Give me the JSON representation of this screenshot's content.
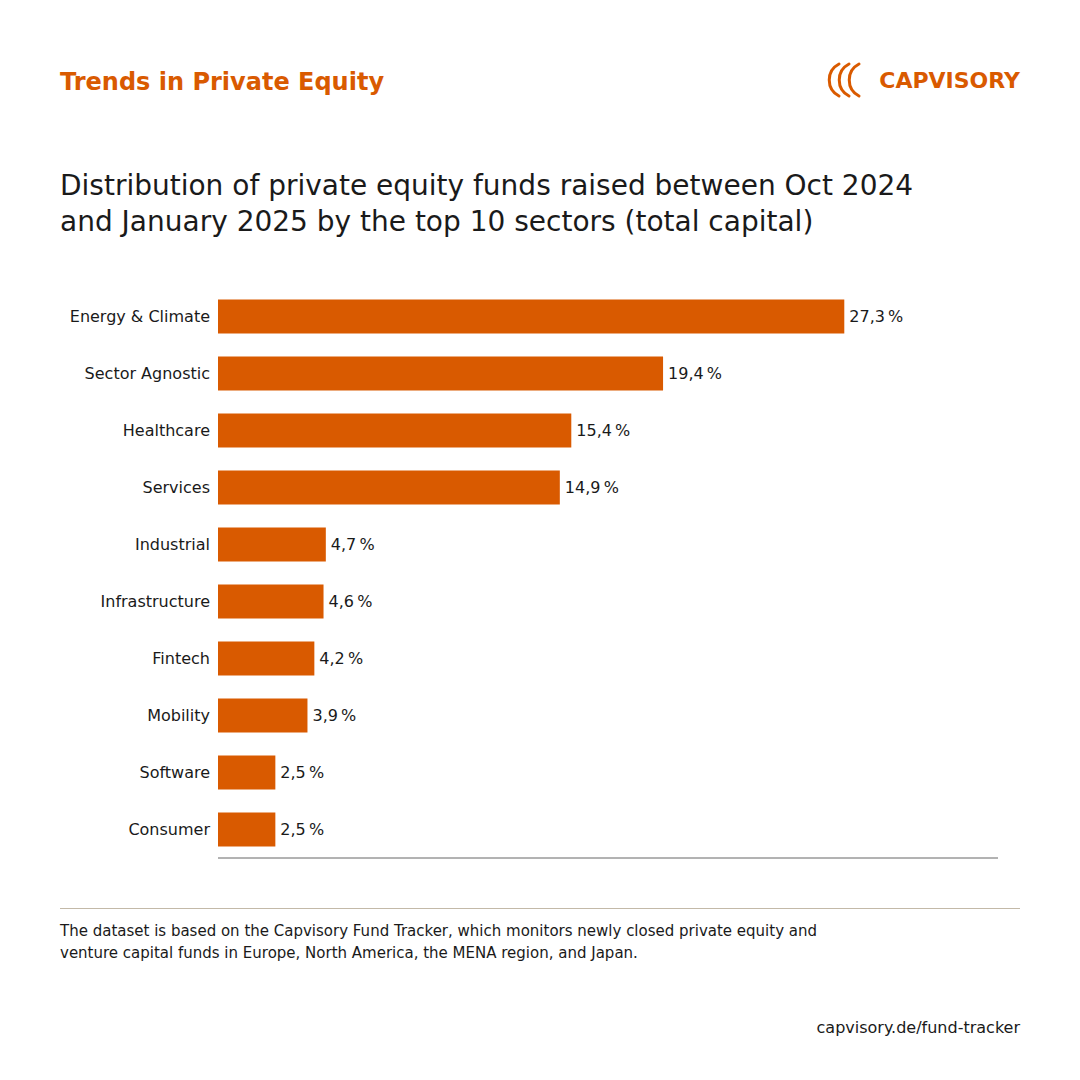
{
  "chart_data": {
    "type": "bar",
    "orientation": "horizontal",
    "title": "Distribution of private equity funds raised between Oct 2024\nand January 2025 by the top 10 sectors (total capital)",
    "annotations": [
      "Trends in Private Equity",
      "CAPVISORY",
      "The dataset is based on the Capvisory Fund Tracker, which monitors newly closed private equity and",
      "venture capital funds in Europe, North America, the MENA region, and Japan.",
      "capvisory.de/fund-tracker"
    ],
    "categories": [
      "Energy & Climate",
      "Sector Agnostic",
      "Healthcare",
      "Services",
      "Industrial",
      "Infrastructure",
      "Fintech",
      "Mobility",
      "Software",
      "Consumer"
    ],
    "values": [
      27.3,
      19.4,
      15.4,
      14.9,
      4.7,
      4.6,
      4.2,
      3.9,
      2.5,
      2.5
    ],
    "value_labels": [
      "27,3 %",
      "19,4 %",
      "15,4 %",
      "14,9 %",
      "4,7 %",
      "4,6 %",
      "4,2 %",
      "3,9 %",
      "2,5 %",
      "2,5 %"
    ],
    "data_labels": true,
    "color": "#D95A00",
    "xlim": [
      0,
      34
    ],
    "tick_labels": "y",
    "grid": false
  }
}
